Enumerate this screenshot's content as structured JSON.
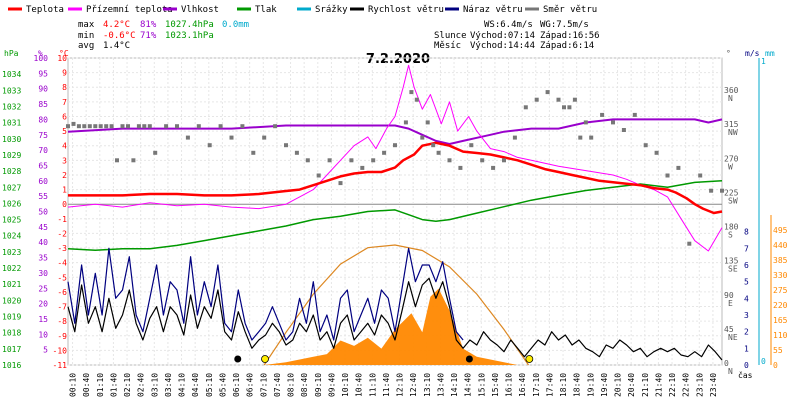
{
  "chart_data": {
    "type": "line",
    "title": "7.2.2020",
    "xlabel": "čas",
    "legend_placement": "top",
    "legend": [
      {
        "name": "Teplota",
        "color": "#ff0000"
      },
      {
        "name": "Přízemní teplota",
        "color": "#ff00ff"
      },
      {
        "name": "Vlhkost",
        "color": "#9900cc"
      },
      {
        "name": "Tlak",
        "color": "#009900"
      },
      {
        "name": "Srážky",
        "color": "#00aacc"
      },
      {
        "name": "Rychlost větru",
        "color": "#000000"
      },
      {
        "name": "Náraz větru",
        "color": "#000080"
      },
      {
        "name": "Směr větru",
        "color": "#777777"
      }
    ],
    "stats": {
      "max": {
        "label": "max",
        "temp": "4.2°C",
        "hum": "81%",
        "press": "1027.4hPa",
        "rain": "0.0mm"
      },
      "min": {
        "label": "min",
        "temp": "-0.6°C",
        "hum": "71%",
        "press": "1023.1hPa"
      },
      "avg": {
        "label": "avg",
        "temp": "1.4°C"
      }
    },
    "info": {
      "ws": "WS:6.4m/s",
      "wg": "WG:7.5m/s",
      "sun_label": "Slunce",
      "sunrise": "Východ:07:14",
      "sunset": "Západ:16:56",
      "moon_label": "Měsíc",
      "moonrise": "Východ:14:44",
      "moonset": "Západ:6:14"
    },
    "axes": {
      "pressure": {
        "unit": "hPa",
        "range": [
          1016,
          1035
        ],
        "ticks": [
          1016,
          1017,
          1018,
          1019,
          1020,
          1021,
          1022,
          1023,
          1024,
          1025,
          1026,
          1027,
          1028,
          1029,
          1030,
          1031,
          1032,
          1033,
          1034
        ]
      },
      "humidity": {
        "unit": "%",
        "range": [
          0,
          100
        ],
        "ticks": [
          100,
          95,
          90,
          85,
          80,
          75,
          70,
          65,
          60,
          55,
          50,
          45,
          40,
          35,
          30,
          25,
          20,
          15,
          10,
          5
        ]
      },
      "temperature": {
        "unit": "°C",
        "range": [
          -11,
          10
        ],
        "ticks": [
          10,
          9,
          8,
          7,
          6,
          5,
          4,
          3,
          2,
          1,
          0,
          -1,
          -2,
          -3,
          -4,
          -5,
          -6,
          -7,
          -8,
          -9,
          -10,
          -11
        ]
      },
      "wind_direction": {
        "unit": "°",
        "ticks": [
          {
            "deg": 360,
            "dir": "N"
          },
          {
            "deg": 315,
            "dir": "NW"
          },
          {
            "deg": 270,
            "dir": "W"
          },
          {
            "deg": 225,
            "dir": "SW"
          },
          {
            "deg": 180,
            "dir": "S"
          },
          {
            "deg": 135,
            "dir": "SE"
          },
          {
            "deg": 90,
            "dir": "E"
          },
          {
            "deg": 45,
            "dir": "NE"
          },
          {
            "deg": 0,
            "dir": "N"
          }
        ]
      },
      "wind_speed": {
        "unit": "m/s",
        "range": [
          0,
          9
        ],
        "ticks": [
          0,
          1,
          2,
          3,
          4,
          5,
          6,
          7,
          8
        ]
      },
      "rain": {
        "unit": "mm",
        "range": [
          0,
          1
        ],
        "ticks": [
          0,
          1
        ]
      },
      "solar": {
        "range": [
          0,
          550
        ],
        "ticks": [
          0,
          55,
          110,
          165,
          220,
          275,
          330,
          385,
          440,
          495
        ]
      }
    },
    "time_ticks": [
      "00:10",
      "00:40",
      "01:10",
      "01:40",
      "02:10",
      "02:40",
      "03:10",
      "03:40",
      "04:10",
      "04:40",
      "05:10",
      "05:40",
      "06:10",
      "06:40",
      "07:10",
      "07:40",
      "08:10",
      "08:40",
      "09:10",
      "09:40",
      "10:10",
      "10:40",
      "11:10",
      "11:40",
      "12:10",
      "12:40",
      "13:10",
      "13:40",
      "14:10",
      "14:40",
      "15:10",
      "15:40",
      "16:10",
      "16:40",
      "17:10",
      "17:40",
      "18:10",
      "18:40",
      "19:10",
      "19:40",
      "20:10",
      "20:40",
      "21:10",
      "21:40",
      "22:10",
      "22:40",
      "23:10",
      "23:40"
    ],
    "series": [
      {
        "name": "Teplota",
        "unit": "°C",
        "x": [
          0,
          1,
          2,
          3,
          4,
          5,
          6,
          7,
          8,
          8.5,
          9,
          9.5,
          10,
          10.5,
          11,
          11.5,
          12,
          12.3,
          12.7,
          13,
          13.5,
          14,
          14.5,
          15,
          15.5,
          16,
          16.5,
          17,
          17.5,
          18,
          18.5,
          19,
          19.5,
          20,
          20.5,
          21,
          21.5,
          22,
          22.3,
          22.7,
          23,
          23.3,
          23.7,
          24
        ],
        "y": [
          0.6,
          0.6,
          0.6,
          0.7,
          0.7,
          0.6,
          0.6,
          0.7,
          0.9,
          1.0,
          1.3,
          1.6,
          1.9,
          2.1,
          2.2,
          2.2,
          2.5,
          3.0,
          3.4,
          4.0,
          4.2,
          4.0,
          3.6,
          3.5,
          3.4,
          3.2,
          3.0,
          2.7,
          2.4,
          2.2,
          2.0,
          1.8,
          1.6,
          1.5,
          1.4,
          1.3,
          1.1,
          1.0,
          0.8,
          0.4,
          0.0,
          -0.3,
          -0.6,
          -0.5
        ]
      },
      {
        "name": "Přízemní teplota",
        "unit": "°C",
        "x": [
          0,
          1,
          2,
          3,
          4,
          5,
          6,
          7,
          8,
          8.5,
          9,
          9.5,
          10,
          10.5,
          11,
          11.3,
          11.7,
          12,
          12.3,
          12.5,
          12.7,
          13,
          13.3,
          13.7,
          14,
          14.3,
          14.7,
          15,
          15.5,
          16,
          16.5,
          17,
          17.5,
          18,
          19,
          20,
          20.5,
          21,
          21.5,
          22,
          22.5,
          23,
          23.5,
          24
        ],
        "y": [
          -0.2,
          0.0,
          -0.2,
          0.1,
          -0.1,
          0.0,
          -0.2,
          -0.3,
          0.0,
          0.5,
          1.0,
          2.0,
          3.0,
          4.0,
          4.6,
          3.8,
          5.2,
          6.0,
          8.0,
          9.5,
          8.0,
          6.5,
          7.5,
          5.5,
          7.0,
          5.0,
          6.0,
          5.0,
          3.8,
          3.6,
          3.2,
          3.0,
          2.8,
          2.6,
          2.3,
          2.0,
          1.7,
          1.3,
          1.0,
          0.5,
          -1.0,
          -2.5,
          -3.2,
          -1.6
        ]
      },
      {
        "name": "Vlhkost",
        "unit": "%",
        "x": [
          0,
          2,
          4,
          6,
          8,
          10,
          12,
          12.5,
          13,
          13.5,
          14,
          14.5,
          15,
          15.5,
          16,
          17,
          18,
          19,
          20,
          21,
          22,
          23,
          23.5,
          24
        ],
        "y": [
          76,
          77,
          77,
          77,
          78,
          78,
          78,
          77,
          75,
          73,
          72,
          73,
          74,
          75,
          76,
          77,
          77,
          79,
          80,
          80,
          80,
          80,
          79,
          80
        ]
      },
      {
        "name": "Tlak",
        "unit": "hPa",
        "x": [
          0,
          1,
          2,
          3,
          4,
          5,
          6,
          7,
          8,
          9,
          10,
          11,
          12,
          12.5,
          13,
          13.5,
          14,
          15,
          16,
          17,
          18,
          19,
          20,
          21,
          22,
          23,
          24
        ],
        "y": [
          1023.2,
          1023.1,
          1023.2,
          1023.2,
          1023.4,
          1023.7,
          1024.0,
          1024.3,
          1024.6,
          1025.0,
          1025.2,
          1025.5,
          1025.6,
          1025.3,
          1025.0,
          1024.9,
          1025.0,
          1025.4,
          1025.8,
          1026.2,
          1026.5,
          1026.8,
          1027.0,
          1027.2,
          1027.0,
          1027.3,
          1027.4
        ]
      },
      {
        "name": "Rychlost větru",
        "unit": "m/s",
        "x": [
          0,
          0.25,
          0.5,
          0.75,
          1,
          1.25,
          1.5,
          1.75,
          2,
          2.25,
          2.5,
          2.75,
          3,
          3.25,
          3.5,
          3.75,
          4,
          4.25,
          4.5,
          4.75,
          5,
          5.25,
          5.5,
          5.75,
          6,
          6.25,
          6.5,
          6.75,
          7,
          7.25,
          7.5,
          7.75,
          8,
          8.25,
          8.5,
          8.75,
          9,
          9.25,
          9.5,
          9.75,
          10,
          10.25,
          10.5,
          10.75,
          11,
          11.25,
          11.5,
          11.75,
          12,
          12.25,
          12.5,
          12.75,
          13,
          13.25,
          13.5,
          13.75,
          14,
          14.25,
          14.5,
          14.75,
          15,
          15.25,
          15.5,
          15.75,
          16,
          16.25,
          16.5,
          16.75,
          17,
          17.25,
          17.5,
          17.75,
          18,
          18.25,
          18.5,
          18.75,
          19,
          19.25,
          19.5,
          19.75,
          20,
          20.25,
          20.5,
          20.75,
          21,
          21.25,
          21.5,
          21.75,
          22,
          22.25,
          22.5,
          22.75,
          23,
          23.25,
          23.5,
          23.75,
          24
        ],
        "y": [
          3.5,
          2.0,
          4.8,
          2.5,
          3.5,
          2.0,
          4.0,
          2.2,
          3.0,
          4.5,
          2.5,
          1.5,
          2.8,
          3.5,
          2.0,
          3.5,
          3.0,
          1.8,
          4.2,
          2.2,
          3.5,
          2.8,
          4.5,
          2.0,
          1.5,
          3.2,
          2.0,
          1.0,
          1.5,
          1.8,
          2.5,
          2.0,
          1.2,
          1.5,
          2.5,
          2.0,
          3.0,
          1.5,
          2.0,
          1.0,
          2.5,
          3.0,
          1.5,
          2.0,
          2.5,
          1.8,
          3.0,
          2.5,
          1.5,
          3.2,
          5.0,
          3.5,
          4.8,
          5.2,
          4.0,
          5.0,
          3.5,
          1.5,
          1.0,
          1.5,
          1.2,
          2.0,
          1.5,
          1.2,
          0.8,
          1.5,
          1.0,
          0.5,
          1.0,
          1.5,
          1.2,
          2.0,
          1.5,
          1.8,
          1.2,
          1.5,
          1.0,
          0.8,
          0.5,
          1.2,
          1.0,
          1.5,
          1.2,
          0.8,
          1.0,
          0.5,
          0.8,
          1.0,
          0.8,
          1.0,
          0.6,
          0.5,
          0.8,
          0.5,
          1.2,
          0.8,
          0.3
        ]
      },
      {
        "name": "Náraz větru",
        "unit": "m/s",
        "x": [
          0,
          0.25,
          0.5,
          0.75,
          1,
          1.25,
          1.5,
          1.75,
          2,
          2.25,
          2.5,
          2.75,
          3,
          3.25,
          3.5,
          3.75,
          4,
          4.25,
          4.5,
          4.75,
          5,
          5.25,
          5.5,
          5.75,
          6,
          6.25,
          6.5,
          6.75,
          7,
          7.25,
          7.5,
          7.75,
          8,
          8.25,
          8.5,
          8.75,
          9,
          9.25,
          9.5,
          9.75,
          10,
          10.25,
          10.5,
          10.75,
          11,
          11.25,
          11.5,
          11.75,
          12,
          12.25,
          12.5,
          12.75,
          13,
          13.25,
          13.5,
          13.75,
          14,
          14.25,
          14.5
        ],
        "y": [
          5.0,
          2.5,
          6.0,
          3.0,
          5.5,
          3.0,
          7.0,
          4.0,
          4.5,
          6.5,
          3.0,
          2.0,
          4.0,
          6.0,
          3.0,
          5.0,
          4.5,
          2.5,
          6.5,
          3.0,
          5.0,
          3.5,
          6.0,
          2.5,
          2.0,
          4.5,
          2.5,
          1.5,
          2.0,
          2.5,
          3.5,
          2.5,
          1.5,
          2.0,
          4.0,
          2.5,
          5.0,
          2.0,
          3.0,
          1.5,
          4.0,
          4.5,
          2.0,
          3.0,
          4.0,
          2.5,
          4.5,
          4.0,
          2.0,
          4.5,
          7.0,
          5.0,
          6.0,
          6.0,
          5.0,
          6.2,
          4.0,
          2.0,
          1.5
        ]
      },
      {
        "name": "Směr větru",
        "unit": "°",
        "x": [
          0,
          0.2,
          0.4,
          0.6,
          0.8,
          1,
          1.2,
          1.4,
          1.6,
          1.8,
          2,
          2.2,
          2.4,
          2.6,
          2.8,
          3,
          3.2,
          3.6,
          4,
          4.4,
          4.8,
          5.2,
          5.6,
          6,
          6.4,
          6.8,
          7.2,
          7.6,
          8,
          8.4,
          8.8,
          9.2,
          9.6,
          10,
          10.4,
          10.8,
          11.2,
          11.6,
          12,
          12.4,
          12.6,
          12.8,
          13,
          13.2,
          13.4,
          13.6,
          14,
          14.4,
          14.8,
          15.2,
          15.6,
          16,
          16.4,
          16.8,
          17.2,
          17.6,
          18,
          18.2,
          18.4,
          18.6,
          18.8,
          19,
          19.2,
          19.6,
          20,
          20.4,
          20.8,
          21.2,
          21.6,
          22,
          22.4,
          22.8,
          23.2,
          23.6,
          24
        ],
        "y": [
          315,
          318,
          315,
          315,
          315,
          315,
          315,
          315,
          315,
          270,
          315,
          315,
          270,
          315,
          315,
          315,
          280,
          315,
          315,
          300,
          315,
          290,
          315,
          300,
          315,
          280,
          300,
          315,
          290,
          280,
          270,
          250,
          270,
          240,
          270,
          260,
          270,
          280,
          290,
          320,
          360,
          350,
          300,
          320,
          290,
          280,
          270,
          260,
          290,
          270,
          260,
          270,
          300,
          340,
          350,
          360,
          350,
          340,
          340,
          350,
          300,
          320,
          300,
          330,
          320,
          310,
          330,
          290,
          280,
          250,
          260,
          160,
          250,
          230,
          230
        ]
      }
    ],
    "solar_radiation": {
      "x": [
        7.2,
        8,
        9,
        9.5,
        10,
        10.5,
        11,
        11.5,
        12,
        12.3,
        12.6,
        13,
        13.3,
        13.6,
        14,
        14.5,
        15,
        16,
        16.5
      ],
      "y": [
        0,
        10,
        30,
        40,
        90,
        70,
        100,
        60,
        130,
        160,
        190,
        120,
        250,
        280,
        200,
        60,
        30,
        10,
        0
      ]
    },
    "solar_max": {
      "x": [
        7.2,
        8,
        9,
        10,
        11,
        12,
        13,
        14,
        15,
        16,
        16.9
      ],
      "y": [
        0,
        120,
        260,
        370,
        430,
        440,
        420,
        360,
        260,
        130,
        0
      ]
    },
    "sun_markers": [
      {
        "x": 7.23,
        "kind": "sunrise"
      },
      {
        "x": 16.93,
        "kind": "sunset"
      }
    ],
    "moon_markers": [
      {
        "x": 6.23,
        "kind": "moonset"
      },
      {
        "x": 14.73,
        "kind": "moonrise"
      }
    ]
  }
}
